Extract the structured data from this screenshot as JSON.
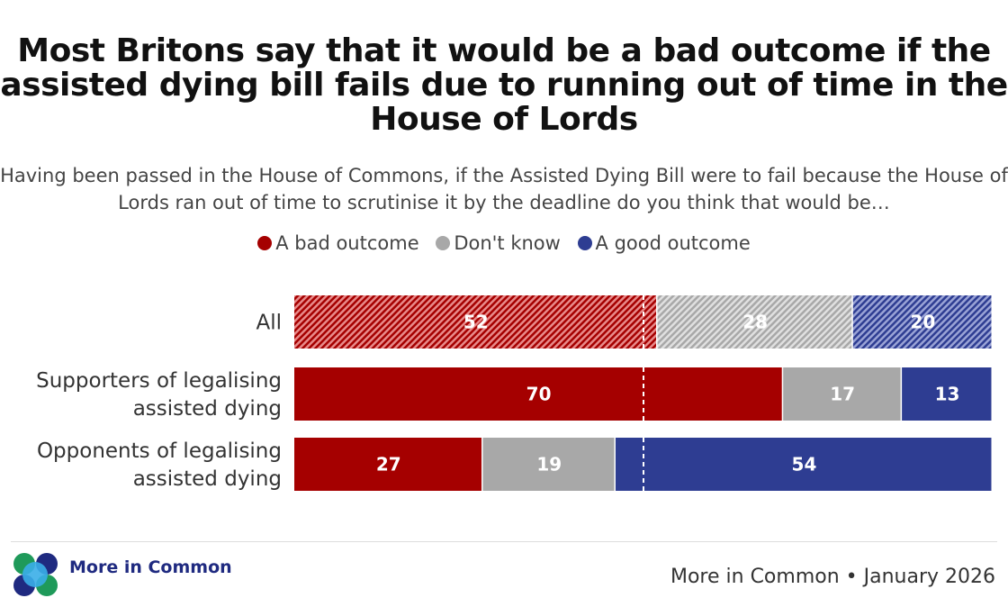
{
  "title": "Most Britons say that it would be a bad outcome if the assisted dying bill fails due to running out of time in the House of Lords",
  "subtitle": "Having been passed in the House of Commons, if the Assisted Dying Bill were to fail because the House of Lords ran out of time to scrutinise it by the deadline do you think that would be…",
  "legend": [
    {
      "label": "A bad outcome",
      "color": "#a50000"
    },
    {
      "label": "Don't know",
      "color": "#a8a8a8"
    },
    {
      "label": "A good outcome",
      "color": "#2e3d92"
    }
  ],
  "chart_data": {
    "type": "bar",
    "orientation": "horizontal",
    "stacked": true,
    "categories": [
      "All",
      "Supporters of legalising assisted dying",
      "Opponents of legalising assisted dying"
    ],
    "category_lines": [
      [
        "All"
      ],
      [
        "Supporters of legalising",
        "assisted dying"
      ],
      [
        "Opponents of legalising",
        "assisted dying"
      ]
    ],
    "series": [
      {
        "name": "A bad outcome",
        "color": "#a50000",
        "values": [
          52,
          70,
          27
        ]
      },
      {
        "name": "Don't know",
        "color": "#a8a8a8",
        "values": [
          28,
          17,
          19
        ]
      },
      {
        "name": "A good outcome",
        "color": "#2e3d92",
        "values": [
          20,
          13,
          54
        ]
      }
    ],
    "hatched_rows": [
      0
    ],
    "reference_line": 50,
    "xlim": [
      0,
      100
    ]
  },
  "logo_text": "More in Common",
  "source": "More in Common • January 2026"
}
